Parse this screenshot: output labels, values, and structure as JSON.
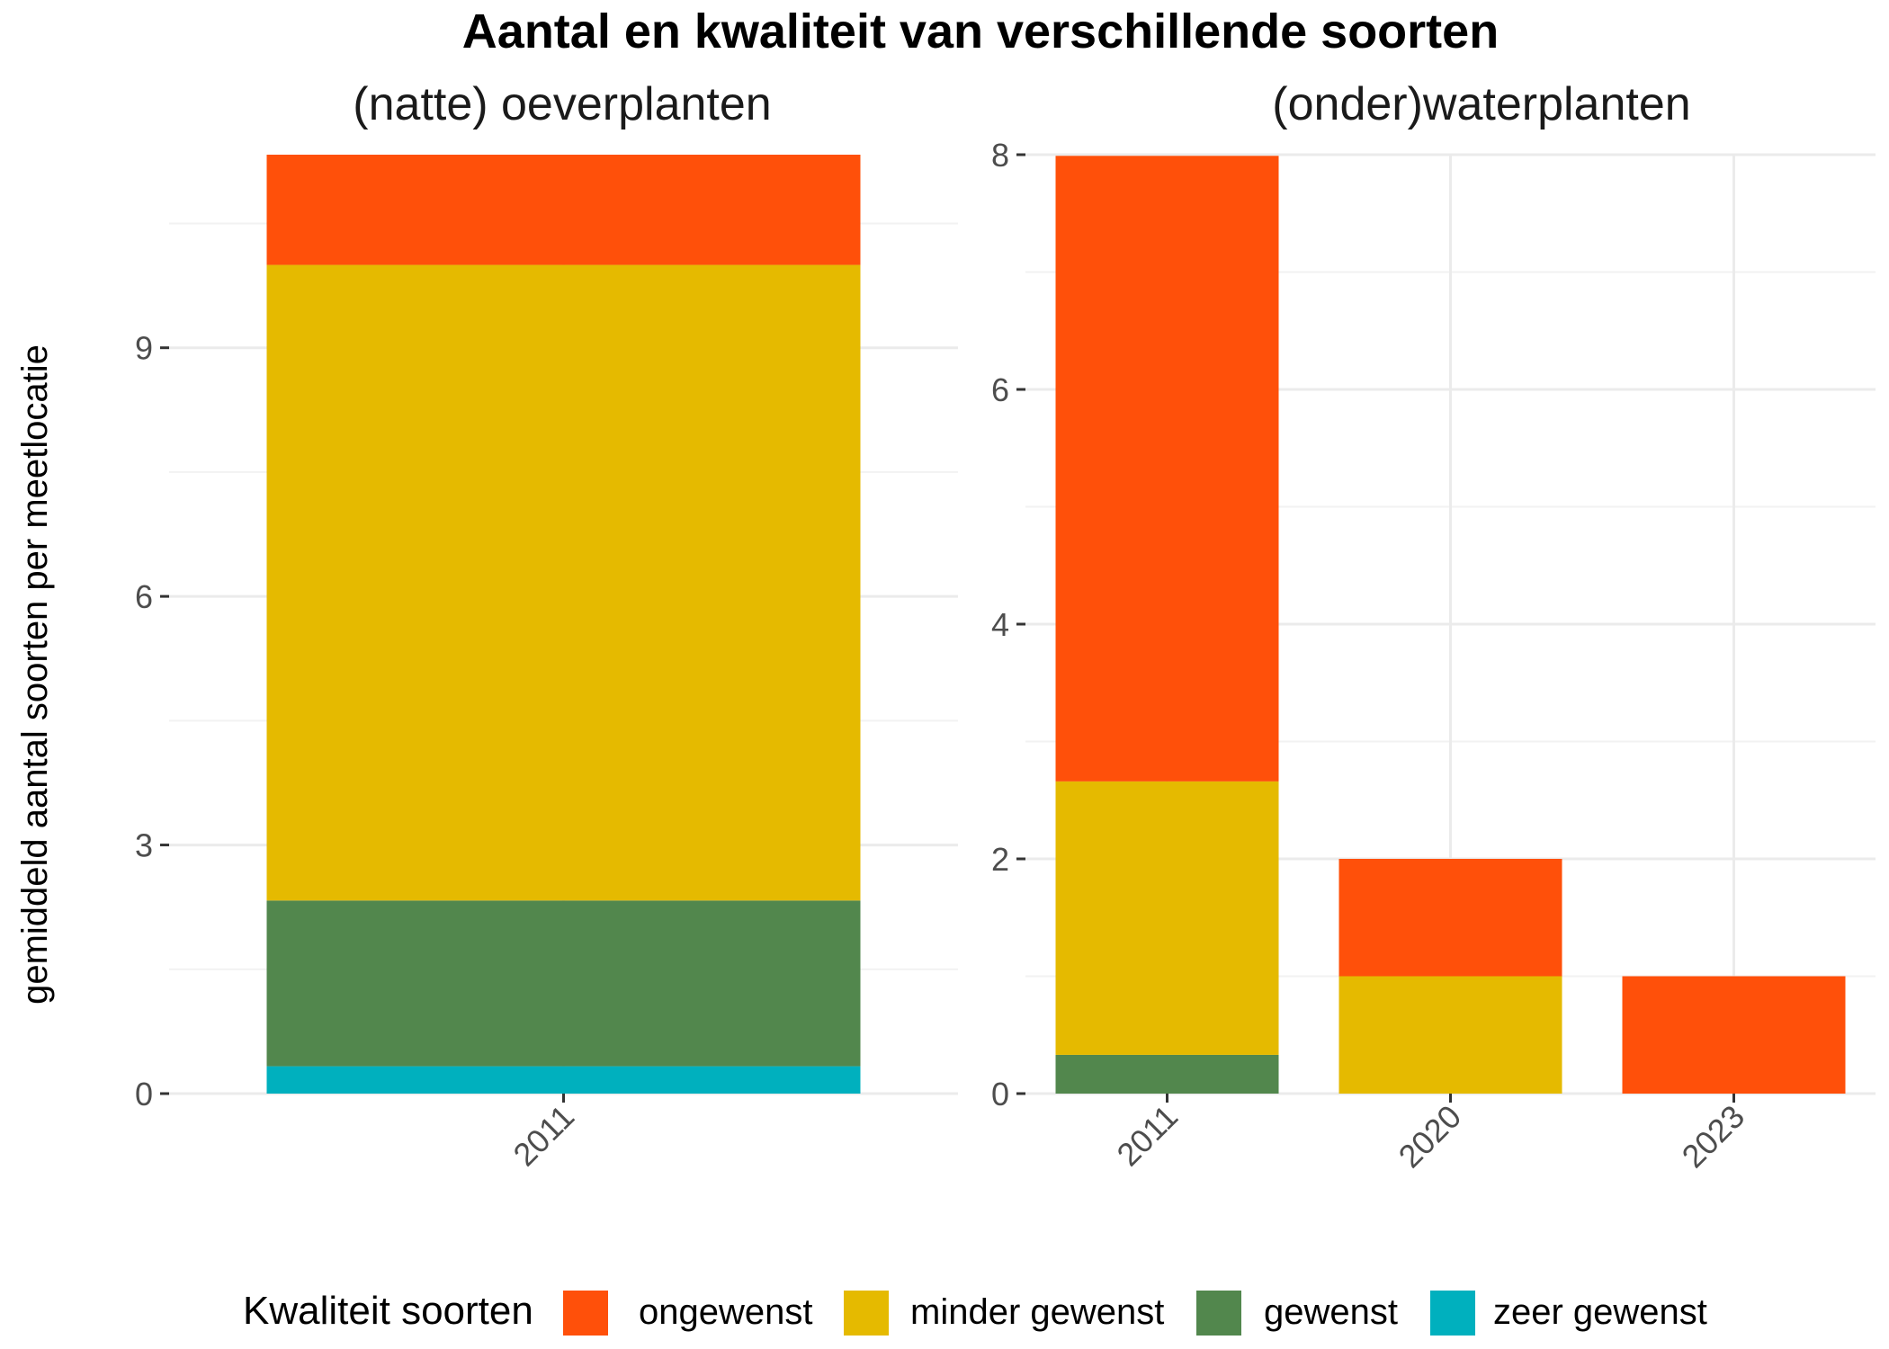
{
  "chart_data": {
    "type": "bar",
    "stacked": true,
    "title": "Aantal en kwaliteit van verschillende soorten",
    "ylabel": "gemiddeld aantal soorten per meetlocatie",
    "legend": {
      "title": "Kwaliteit soorten",
      "position": "bottom",
      "items": [
        {
          "name": "ongewenst",
          "color": "#FF500A"
        },
        {
          "name": "minder gewenst",
          "color": "#E5BA00"
        },
        {
          "name": "gewenst",
          "color": "#52874D"
        },
        {
          "name": "zeer gewenst",
          "color": "#00B0BE"
        }
      ]
    },
    "panels": [
      {
        "title": "(natte) oeverplanten",
        "categories": [
          "2011"
        ],
        "ylim": [
          0,
          11.33
        ],
        "yticks": [
          0,
          3,
          6,
          9
        ],
        "series": [
          {
            "name": "zeer gewenst",
            "values": [
              0.33
            ]
          },
          {
            "name": "gewenst",
            "values": [
              2.0
            ]
          },
          {
            "name": "minder gewenst",
            "values": [
              7.67
            ]
          },
          {
            "name": "ongewenst",
            "values": [
              1.33
            ]
          }
        ]
      },
      {
        "title": "(onder)waterplanten",
        "categories": [
          "2011",
          "2020",
          "2023"
        ],
        "ylim": [
          0,
          8
        ],
        "yticks": [
          0,
          2,
          4,
          6,
          8
        ],
        "series": [
          {
            "name": "zeer gewenst",
            "values": [
              0,
              0,
              0
            ]
          },
          {
            "name": "gewenst",
            "values": [
              0.33,
              0,
              0
            ]
          },
          {
            "name": "minder gewenst",
            "values": [
              2.33,
              1,
              0
            ]
          },
          {
            "name": "ongewenst",
            "values": [
              5.33,
              1,
              1
            ]
          }
        ]
      }
    ]
  }
}
